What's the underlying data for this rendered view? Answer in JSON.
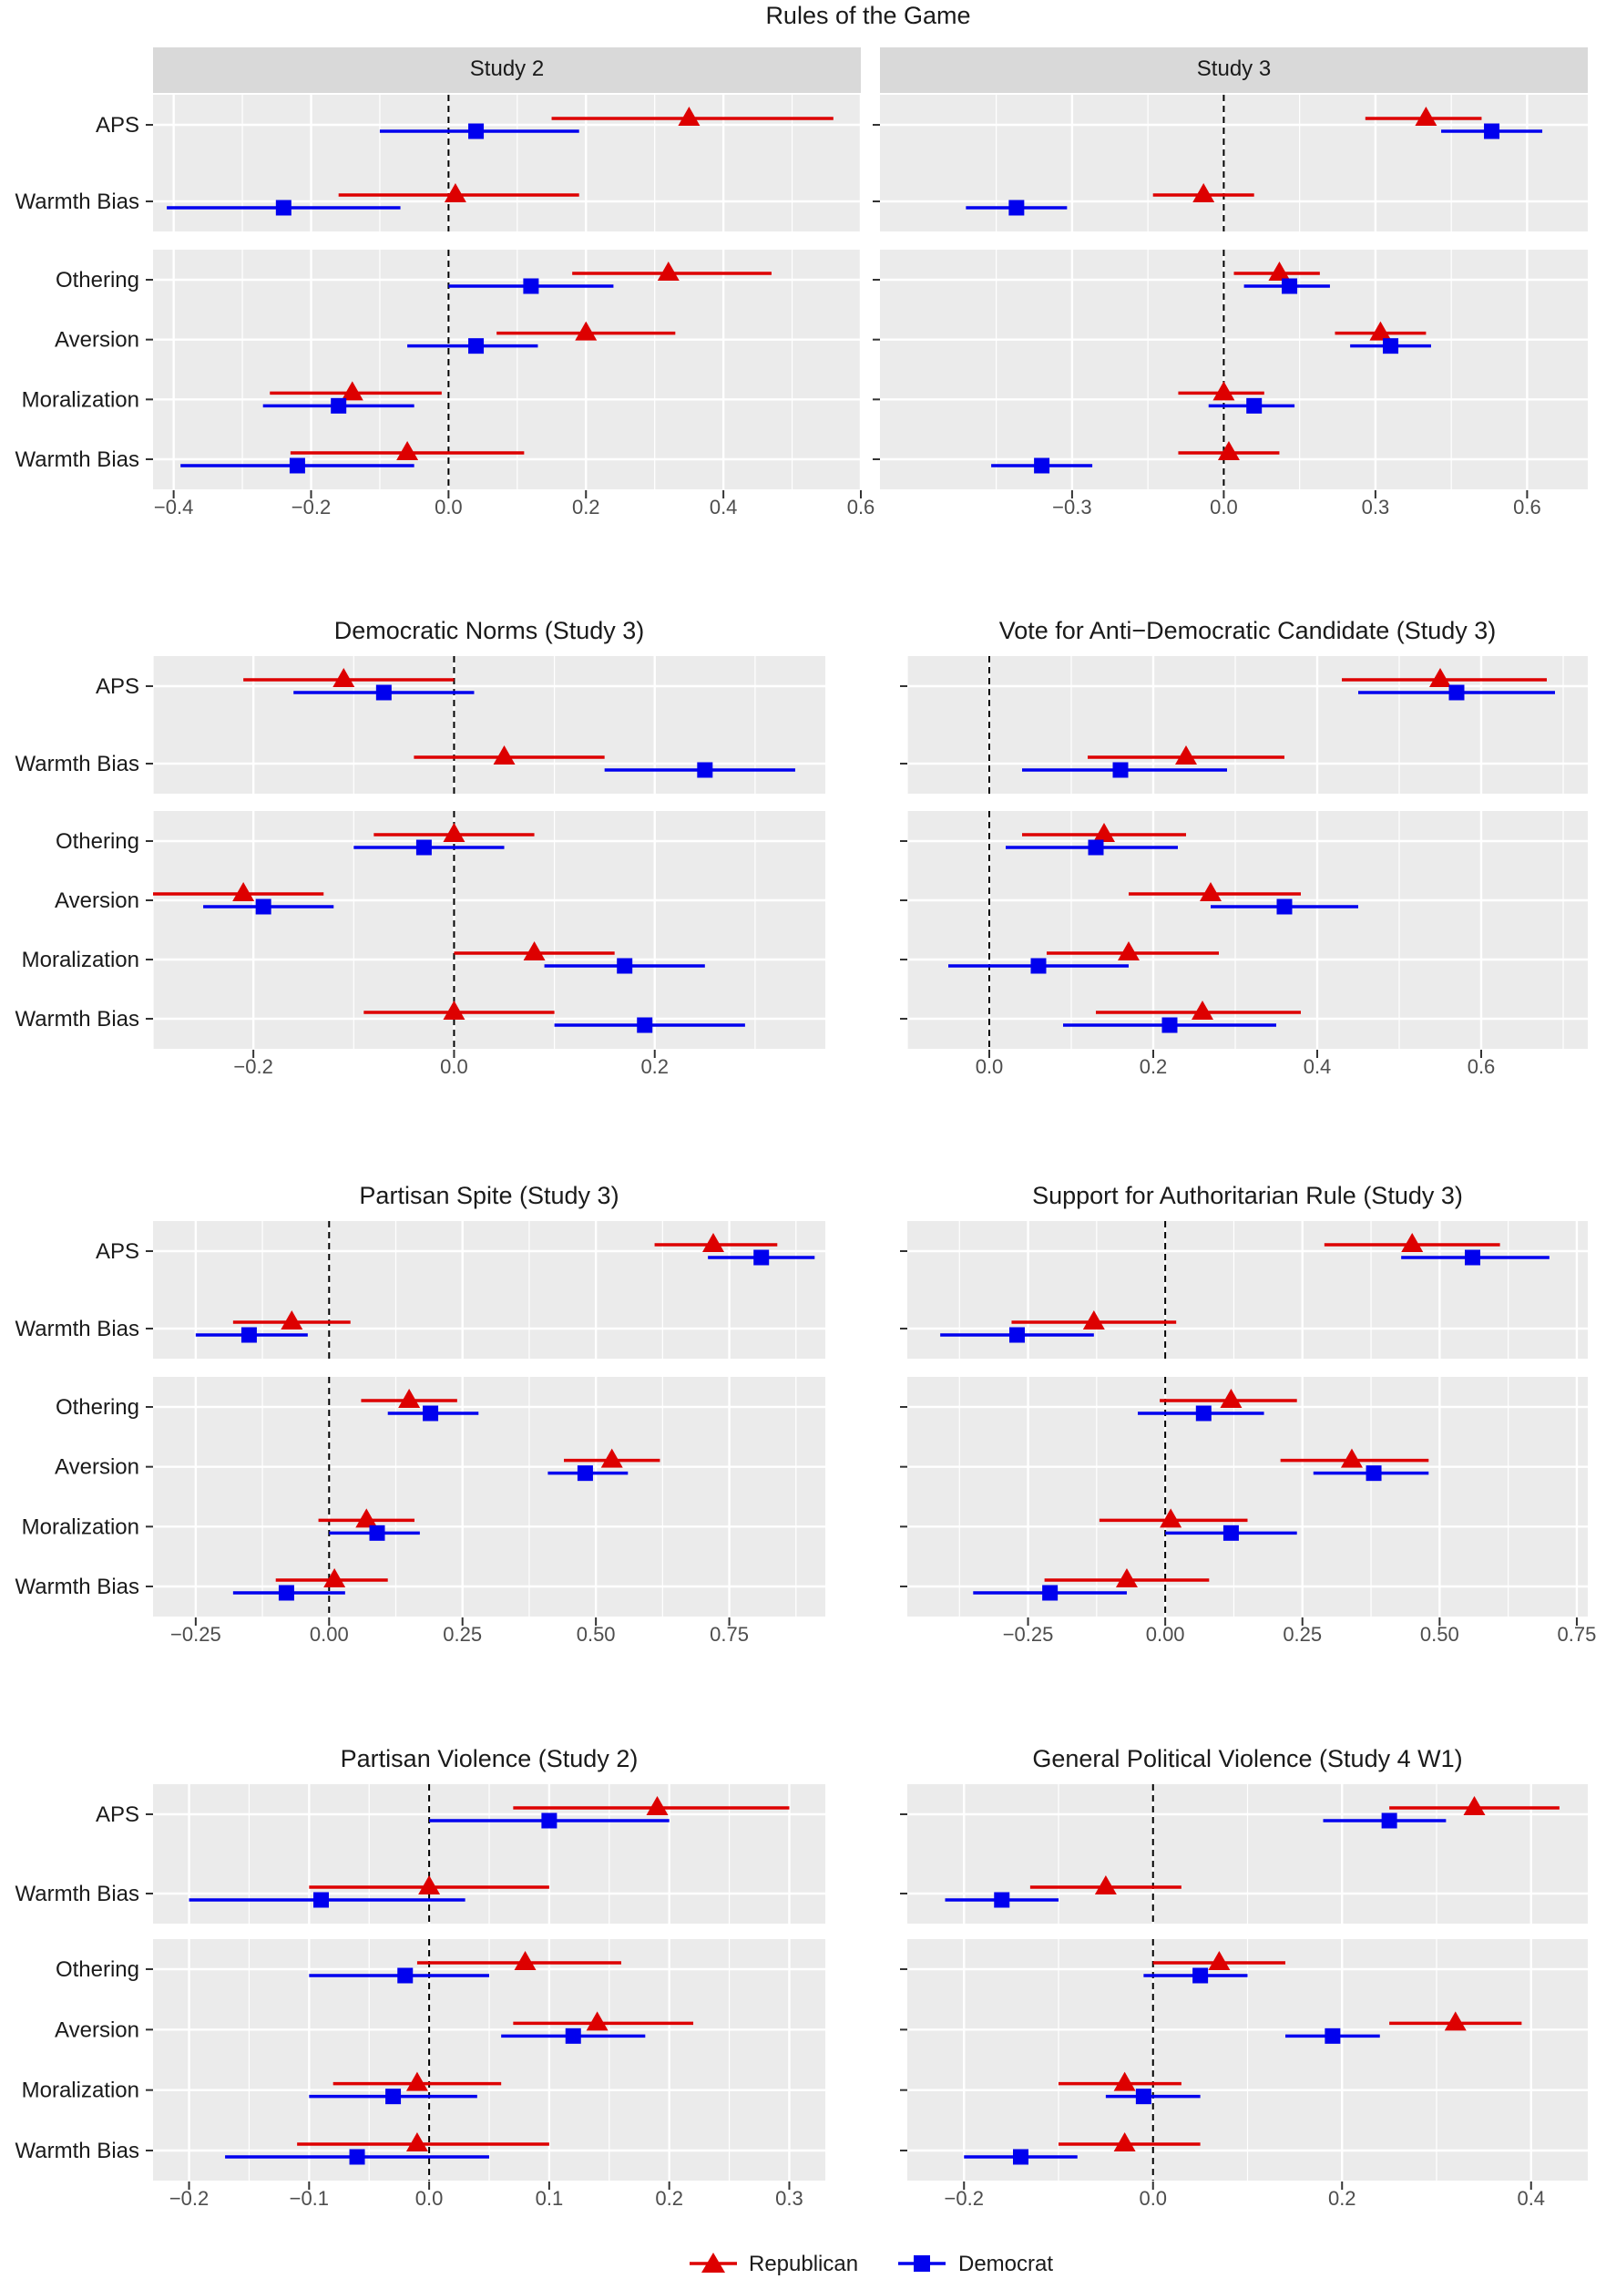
{
  "title": "Rules of the Game",
  "colors": {
    "republican": "#DD0000",
    "democrat": "#0000EE",
    "panel_bg": "#EBEBEB",
    "strip_bg": "#D9D9D9",
    "grid": "#FFFFFF"
  },
  "legend": {
    "republican": "Republican",
    "democrat": "Democrat"
  },
  "chart_data": [
    {
      "type": "dot-whisker",
      "title": "",
      "facet": "Study 2",
      "xlim": [
        -0.43,
        0.6
      ],
      "ticks": [
        -0.4,
        -0.2,
        0.0,
        0.2,
        0.4,
        0.6
      ],
      "tick_labels": [
        "−0.4",
        "−0.2",
        "0.0",
        "0.2",
        "0.4",
        "0.6"
      ],
      "groups": [
        {
          "labels": [
            "APS",
            "Warmth Bias"
          ],
          "rows": [
            {
              "rep": [
                0.35,
                0.15,
                0.56
              ],
              "dem": [
                0.04,
                -0.1,
                0.19
              ]
            },
            {
              "rep": [
                0.01,
                -0.16,
                0.19
              ],
              "dem": [
                -0.24,
                -0.41,
                -0.07
              ]
            }
          ]
        },
        {
          "labels": [
            "Othering",
            "Aversion",
            "Moralization",
            "Warmth Bias"
          ],
          "rows": [
            {
              "rep": [
                0.32,
                0.18,
                0.47
              ],
              "dem": [
                0.12,
                0.0,
                0.24
              ]
            },
            {
              "rep": [
                0.2,
                0.07,
                0.33
              ],
              "dem": [
                0.04,
                -0.06,
                0.13
              ]
            },
            {
              "rep": [
                -0.14,
                -0.26,
                -0.01
              ],
              "dem": [
                -0.16,
                -0.27,
                -0.05
              ]
            },
            {
              "rep": [
                -0.06,
                -0.23,
                0.11
              ],
              "dem": [
                -0.22,
                -0.39,
                -0.05
              ]
            }
          ]
        }
      ]
    },
    {
      "type": "dot-whisker",
      "title": "",
      "facet": "Study 3",
      "xlim": [
        -0.68,
        0.72
      ],
      "ticks": [
        -0.3,
        0.0,
        0.3,
        0.6
      ],
      "tick_labels": [
        "−0.3",
        "0.0",
        "0.3",
        "0.6"
      ],
      "groups": [
        {
          "labels": [
            "APS",
            "Warmth Bias"
          ],
          "rows": [
            {
              "rep": [
                0.4,
                0.28,
                0.51
              ],
              "dem": [
                0.53,
                0.43,
                0.63
              ]
            },
            {
              "rep": [
                -0.04,
                -0.14,
                0.06
              ],
              "dem": [
                -0.41,
                -0.51,
                -0.31
              ]
            }
          ]
        },
        {
          "labels": [
            "Othering",
            "Aversion",
            "Moralization",
            "Warmth Bias"
          ],
          "rows": [
            {
              "rep": [
                0.11,
                0.02,
                0.19
              ],
              "dem": [
                0.13,
                0.04,
                0.21
              ]
            },
            {
              "rep": [
                0.31,
                0.22,
                0.4
              ],
              "dem": [
                0.33,
                0.25,
                0.41
              ]
            },
            {
              "rep": [
                0.0,
                -0.09,
                0.08
              ],
              "dem": [
                0.06,
                -0.03,
                0.14
              ]
            },
            {
              "rep": [
                0.01,
                -0.09,
                0.11
              ],
              "dem": [
                -0.36,
                -0.46,
                -0.26
              ]
            }
          ]
        }
      ]
    },
    {
      "type": "dot-whisker",
      "title": "Democratic Norms (Study 3)",
      "facet": "",
      "xlim": [
        -0.3,
        0.37
      ],
      "ticks": [
        -0.2,
        0.0,
        0.2
      ],
      "tick_labels": [
        "−0.2",
        "0.0",
        "0.2"
      ],
      "groups": [
        {
          "labels": [
            "APS",
            "Warmth Bias"
          ],
          "rows": [
            {
              "rep": [
                -0.11,
                -0.21,
                0.0
              ],
              "dem": [
                -0.07,
                -0.16,
                0.02
              ]
            },
            {
              "rep": [
                0.05,
                -0.04,
                0.15
              ],
              "dem": [
                0.25,
                0.15,
                0.34
              ]
            }
          ]
        },
        {
          "labels": [
            "Othering",
            "Aversion",
            "Moralization",
            "Warmth Bias"
          ],
          "rows": [
            {
              "rep": [
                0.0,
                -0.08,
                0.08
              ],
              "dem": [
                -0.03,
                -0.1,
                0.05
              ]
            },
            {
              "rep": [
                -0.21,
                -0.3,
                -0.13
              ],
              "dem": [
                -0.19,
                -0.25,
                -0.12
              ]
            },
            {
              "rep": [
                0.08,
                0.0,
                0.16
              ],
              "dem": [
                0.17,
                0.09,
                0.25
              ]
            },
            {
              "rep": [
                0.0,
                -0.09,
                0.1
              ],
              "dem": [
                0.19,
                0.1,
                0.29
              ]
            }
          ]
        }
      ]
    },
    {
      "type": "dot-whisker",
      "title": "Vote for Anti−Democratic Candidate (Study 3)",
      "facet": "",
      "xlim": [
        -0.1,
        0.73
      ],
      "ticks": [
        0.0,
        0.2,
        0.4,
        0.6
      ],
      "tick_labels": [
        "0.0",
        "0.2",
        "0.4",
        "0.6"
      ],
      "groups": [
        {
          "labels": [
            "APS",
            "Warmth Bias"
          ],
          "rows": [
            {
              "rep": [
                0.55,
                0.43,
                0.68
              ],
              "dem": [
                0.57,
                0.45,
                0.69
              ]
            },
            {
              "rep": [
                0.24,
                0.12,
                0.36
              ],
              "dem": [
                0.16,
                0.04,
                0.29
              ]
            }
          ]
        },
        {
          "labels": [
            "Othering",
            "Aversion",
            "Moralization",
            "Warmth Bias"
          ],
          "rows": [
            {
              "rep": [
                0.14,
                0.04,
                0.24
              ],
              "dem": [
                0.13,
                0.02,
                0.23
              ]
            },
            {
              "rep": [
                0.27,
                0.17,
                0.38
              ],
              "dem": [
                0.36,
                0.27,
                0.45
              ]
            },
            {
              "rep": [
                0.17,
                0.07,
                0.28
              ],
              "dem": [
                0.06,
                -0.05,
                0.17
              ]
            },
            {
              "rep": [
                0.26,
                0.13,
                0.38
              ],
              "dem": [
                0.22,
                0.09,
                0.35
              ]
            }
          ]
        }
      ]
    },
    {
      "type": "dot-whisker",
      "title": "Partisan Spite (Study 3)",
      "facet": "",
      "xlim": [
        -0.33,
        0.93
      ],
      "ticks": [
        -0.25,
        0.0,
        0.25,
        0.5,
        0.75
      ],
      "tick_labels": [
        "−0.25",
        "0.00",
        "0.25",
        "0.50",
        "0.75"
      ],
      "groups": [
        {
          "labels": [
            "APS",
            "Warmth Bias"
          ],
          "rows": [
            {
              "rep": [
                0.72,
                0.61,
                0.84
              ],
              "dem": [
                0.81,
                0.71,
                0.91
              ]
            },
            {
              "rep": [
                -0.07,
                -0.18,
                0.04
              ],
              "dem": [
                -0.15,
                -0.25,
                -0.04
              ]
            }
          ]
        },
        {
          "labels": [
            "Othering",
            "Aversion",
            "Moralization",
            "Warmth Bias"
          ],
          "rows": [
            {
              "rep": [
                0.15,
                0.06,
                0.24
              ],
              "dem": [
                0.19,
                0.11,
                0.28
              ]
            },
            {
              "rep": [
                0.53,
                0.44,
                0.62
              ],
              "dem": [
                0.48,
                0.41,
                0.56
              ]
            },
            {
              "rep": [
                0.07,
                -0.02,
                0.16
              ],
              "dem": [
                0.09,
                0.0,
                0.17
              ]
            },
            {
              "rep": [
                0.01,
                -0.1,
                0.11
              ],
              "dem": [
                -0.08,
                -0.18,
                0.03
              ]
            }
          ]
        }
      ]
    },
    {
      "type": "dot-whisker",
      "title": "Support for Authoritarian Rule (Study 3)",
      "facet": "",
      "xlim": [
        -0.47,
        0.77
      ],
      "ticks": [
        -0.25,
        0.0,
        0.25,
        0.5,
        0.75
      ],
      "tick_labels": [
        "−0.25",
        "0.00",
        "0.25",
        "0.50",
        "0.75"
      ],
      "groups": [
        {
          "labels": [
            "APS",
            "Warmth Bias"
          ],
          "rows": [
            {
              "rep": [
                0.45,
                0.29,
                0.61
              ],
              "dem": [
                0.56,
                0.43,
                0.7
              ]
            },
            {
              "rep": [
                -0.13,
                -0.28,
                0.02
              ],
              "dem": [
                -0.27,
                -0.41,
                -0.13
              ]
            }
          ]
        },
        {
          "labels": [
            "Othering",
            "Aversion",
            "Moralization",
            "Warmth Bias"
          ],
          "rows": [
            {
              "rep": [
                0.12,
                -0.01,
                0.24
              ],
              "dem": [
                0.07,
                -0.05,
                0.18
              ]
            },
            {
              "rep": [
                0.34,
                0.21,
                0.48
              ],
              "dem": [
                0.38,
                0.27,
                0.48
              ]
            },
            {
              "rep": [
                0.01,
                -0.12,
                0.15
              ],
              "dem": [
                0.12,
                0.0,
                0.24
              ]
            },
            {
              "rep": [
                -0.07,
                -0.22,
                0.08
              ],
              "dem": [
                -0.21,
                -0.35,
                -0.07
              ]
            }
          ]
        }
      ]
    },
    {
      "type": "dot-whisker",
      "title": "Partisan Violence (Study 2)",
      "facet": "",
      "xlim": [
        -0.23,
        0.33
      ],
      "ticks": [
        -0.2,
        -0.1,
        0.0,
        0.1,
        0.2,
        0.3
      ],
      "tick_labels": [
        "−0.2",
        "−0.1",
        "0.0",
        "0.1",
        "0.2",
        "0.3"
      ],
      "groups": [
        {
          "labels": [
            "APS",
            "Warmth Bias"
          ],
          "rows": [
            {
              "rep": [
                0.19,
                0.07,
                0.3
              ],
              "dem": [
                0.1,
                0.0,
                0.2
              ]
            },
            {
              "rep": [
                0.0,
                -0.1,
                0.1
              ],
              "dem": [
                -0.09,
                -0.2,
                0.03
              ]
            }
          ]
        },
        {
          "labels": [
            "Othering",
            "Aversion",
            "Moralization",
            "Warmth Bias"
          ],
          "rows": [
            {
              "rep": [
                0.08,
                -0.01,
                0.16
              ],
              "dem": [
                -0.02,
                -0.1,
                0.05
              ]
            },
            {
              "rep": [
                0.14,
                0.07,
                0.22
              ],
              "dem": [
                0.12,
                0.06,
                0.18
              ]
            },
            {
              "rep": [
                -0.01,
                -0.08,
                0.06
              ],
              "dem": [
                -0.03,
                -0.1,
                0.04
              ]
            },
            {
              "rep": [
                -0.01,
                -0.11,
                0.1
              ],
              "dem": [
                -0.06,
                -0.17,
                0.05
              ]
            }
          ]
        }
      ]
    },
    {
      "type": "dot-whisker",
      "title": "General Political Violence (Study 4 W1)",
      "facet": "",
      "xlim": [
        -0.26,
        0.46
      ],
      "ticks": [
        -0.2,
        0.0,
        0.2,
        0.4
      ],
      "tick_labels": [
        "−0.2",
        "0.0",
        "0.2",
        "0.4"
      ],
      "groups": [
        {
          "labels": [
            "APS",
            "Warmth Bias"
          ],
          "rows": [
            {
              "rep": [
                0.34,
                0.25,
                0.43
              ],
              "dem": [
                0.25,
                0.18,
                0.31
              ]
            },
            {
              "rep": [
                -0.05,
                -0.13,
                0.03
              ],
              "dem": [
                -0.16,
                -0.22,
                -0.1
              ]
            }
          ]
        },
        {
          "labels": [
            "Othering",
            "Aversion",
            "Moralization",
            "Warmth Bias"
          ],
          "rows": [
            {
              "rep": [
                0.07,
                0.0,
                0.14
              ],
              "dem": [
                0.05,
                -0.01,
                0.1
              ]
            },
            {
              "rep": [
                0.32,
                0.25,
                0.39
              ],
              "dem": [
                0.19,
                0.14,
                0.24
              ]
            },
            {
              "rep": [
                -0.03,
                -0.1,
                0.03
              ],
              "dem": [
                -0.01,
                -0.05,
                0.05
              ]
            },
            {
              "rep": [
                -0.03,
                -0.1,
                0.05
              ],
              "dem": [
                -0.14,
                -0.2,
                -0.08
              ]
            }
          ]
        }
      ]
    }
  ]
}
